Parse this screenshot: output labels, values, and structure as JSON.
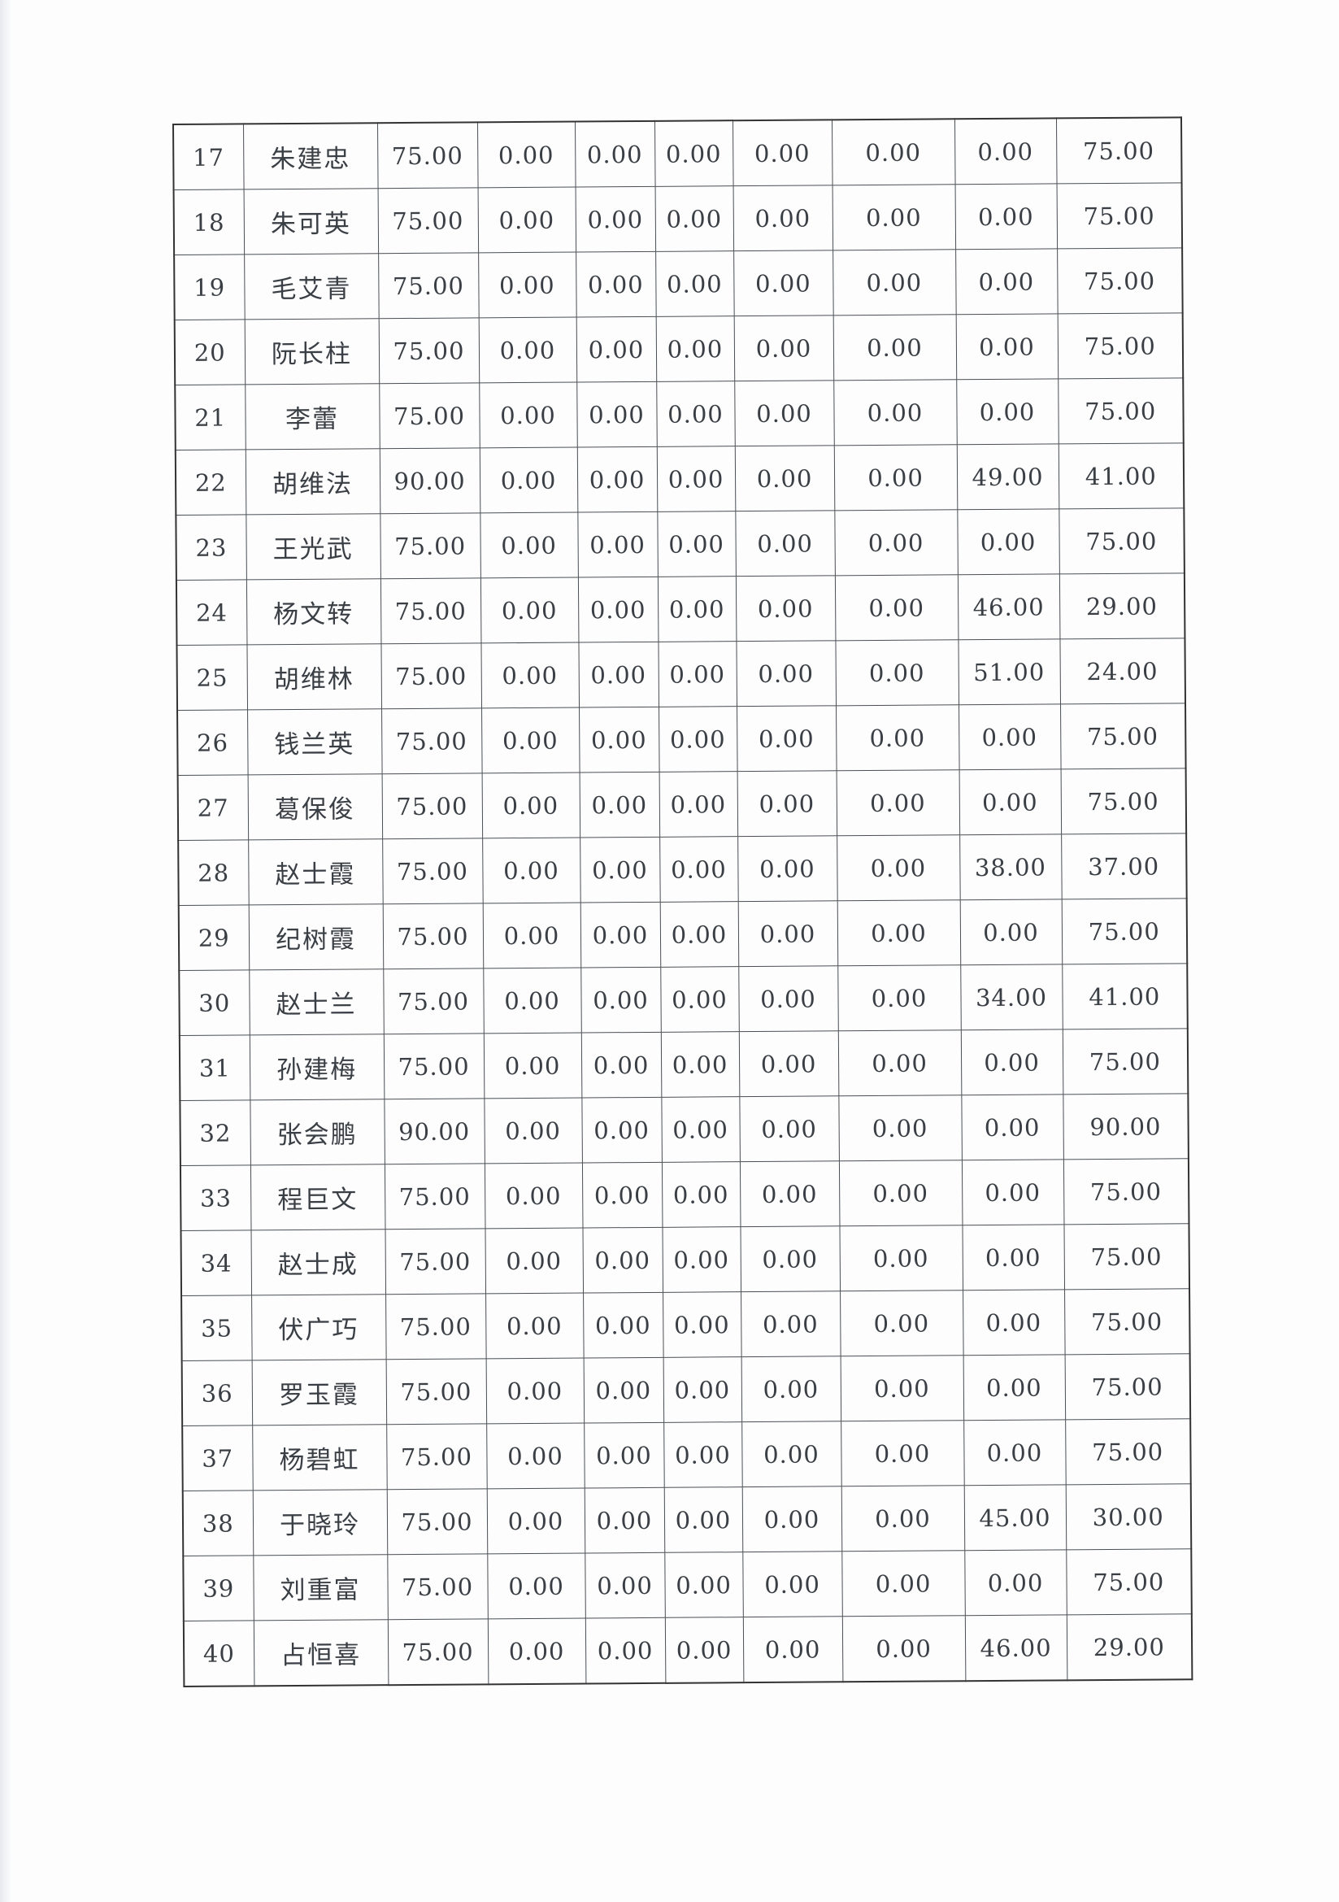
{
  "table": {
    "rows": [
      [
        "17",
        "朱建忠",
        "75.00",
        "0.00",
        "0.00",
        "0.00",
        "0.00",
        "0.00",
        "0.00",
        "75.00"
      ],
      [
        "18",
        "朱可英",
        "75.00",
        "0.00",
        "0.00",
        "0.00",
        "0.00",
        "0.00",
        "0.00",
        "75.00"
      ],
      [
        "19",
        "毛艾青",
        "75.00",
        "0.00",
        "0.00",
        "0.00",
        "0.00",
        "0.00",
        "0.00",
        "75.00"
      ],
      [
        "20",
        "阮长柱",
        "75.00",
        "0.00",
        "0.00",
        "0.00",
        "0.00",
        "0.00",
        "0.00",
        "75.00"
      ],
      [
        "21",
        "李蕾",
        "75.00",
        "0.00",
        "0.00",
        "0.00",
        "0.00",
        "0.00",
        "0.00",
        "75.00"
      ],
      [
        "22",
        "胡维法",
        "90.00",
        "0.00",
        "0.00",
        "0.00",
        "0.00",
        "0.00",
        "49.00",
        "41.00"
      ],
      [
        "23",
        "王光武",
        "75.00",
        "0.00",
        "0.00",
        "0.00",
        "0.00",
        "0.00",
        "0.00",
        "75.00"
      ],
      [
        "24",
        "杨文转",
        "75.00",
        "0.00",
        "0.00",
        "0.00",
        "0.00",
        "0.00",
        "46.00",
        "29.00"
      ],
      [
        "25",
        "胡维林",
        "75.00",
        "0.00",
        "0.00",
        "0.00",
        "0.00",
        "0.00",
        "51.00",
        "24.00"
      ],
      [
        "26",
        "钱兰英",
        "75.00",
        "0.00",
        "0.00",
        "0.00",
        "0.00",
        "0.00",
        "0.00",
        "75.00"
      ],
      [
        "27",
        "葛保俊",
        "75.00",
        "0.00",
        "0.00",
        "0.00",
        "0.00",
        "0.00",
        "0.00",
        "75.00"
      ],
      [
        "28",
        "赵士霞",
        "75.00",
        "0.00",
        "0.00",
        "0.00",
        "0.00",
        "0.00",
        "38.00",
        "37.00"
      ],
      [
        "29",
        "纪树霞",
        "75.00",
        "0.00",
        "0.00",
        "0.00",
        "0.00",
        "0.00",
        "0.00",
        "75.00"
      ],
      [
        "30",
        "赵士兰",
        "75.00",
        "0.00",
        "0.00",
        "0.00",
        "0.00",
        "0.00",
        "34.00",
        "41.00"
      ],
      [
        "31",
        "孙建梅",
        "75.00",
        "0.00",
        "0.00",
        "0.00",
        "0.00",
        "0.00",
        "0.00",
        "75.00"
      ],
      [
        "32",
        "张会鹏",
        "90.00",
        "0.00",
        "0.00",
        "0.00",
        "0.00",
        "0.00",
        "0.00",
        "90.00"
      ],
      [
        "33",
        "程巨文",
        "75.00",
        "0.00",
        "0.00",
        "0.00",
        "0.00",
        "0.00",
        "0.00",
        "75.00"
      ],
      [
        "34",
        "赵士成",
        "75.00",
        "0.00",
        "0.00",
        "0.00",
        "0.00",
        "0.00",
        "0.00",
        "75.00"
      ],
      [
        "35",
        "伏广巧",
        "75.00",
        "0.00",
        "0.00",
        "0.00",
        "0.00",
        "0.00",
        "0.00",
        "75.00"
      ],
      [
        "36",
        "罗玉霞",
        "75.00",
        "0.00",
        "0.00",
        "0.00",
        "0.00",
        "0.00",
        "0.00",
        "75.00"
      ],
      [
        "37",
        "杨碧虹",
        "75.00",
        "0.00",
        "0.00",
        "0.00",
        "0.00",
        "0.00",
        "0.00",
        "75.00"
      ],
      [
        "38",
        "于晓玲",
        "75.00",
        "0.00",
        "0.00",
        "0.00",
        "0.00",
        "0.00",
        "45.00",
        "30.00"
      ],
      [
        "39",
        "刘重富",
        "75.00",
        "0.00",
        "0.00",
        "0.00",
        "0.00",
        "0.00",
        "0.00",
        "75.00"
      ],
      [
        "40",
        "占恒喜",
        "75.00",
        "0.00",
        "0.00",
        "0.00",
        "0.00",
        "0.00",
        "46.00",
        "29.00"
      ]
    ]
  }
}
